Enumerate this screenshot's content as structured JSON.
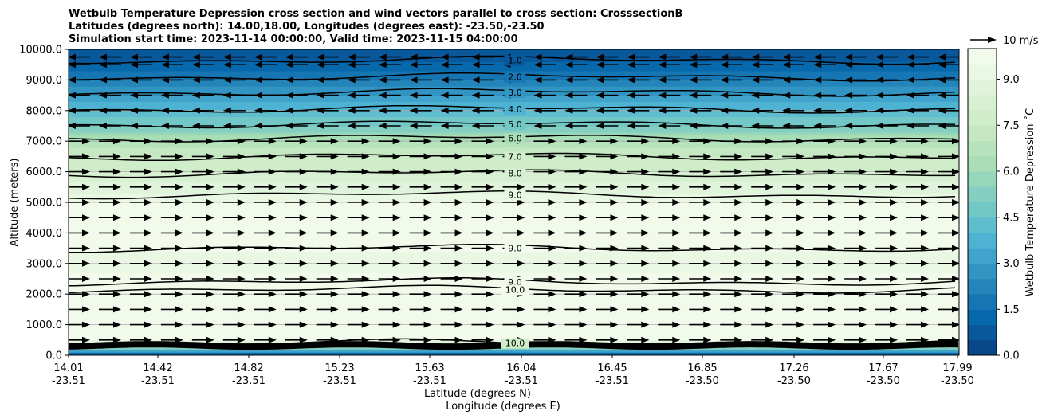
{
  "chart_data": {
    "type": "contour cross section with wind vectors",
    "title": [
      "Wetbulb Temperature Depression cross section and wind vectors parallel to cross section: CrosssectionB",
      "Latitudes (degrees north): 14.00,18.00, Longitudes (degrees east): -23.50,-23.50",
      "Simulation start time: 2023-11-14 00:00:00, Valid time: 2023-11-15 04:00:00"
    ],
    "ylabel": "Altitude (meters)",
    "xlabel_lat": "Latitude (degrees N)",
    "xlabel_lon": "Longitude (degrees E)",
    "ylim": [
      0,
      10000
    ],
    "y_ticks": [
      "0.0",
      "1000.0",
      "2000.0",
      "3000.0",
      "4000.0",
      "5000.0",
      "6000.0",
      "7000.0",
      "8000.0",
      "9000.0",
      "10000.0"
    ],
    "x_ticks": [
      {
        "lat": "14.01",
        "lon": "-23.51"
      },
      {
        "lat": "14.42",
        "lon": "-23.51"
      },
      {
        "lat": "14.82",
        "lon": "-23.51"
      },
      {
        "lat": "15.23",
        "lon": "-23.51"
      },
      {
        "lat": "15.63",
        "lon": "-23.51"
      },
      {
        "lat": "16.04",
        "lon": "-23.51"
      },
      {
        "lat": "16.45",
        "lon": "-23.51"
      },
      {
        "lat": "16.85",
        "lon": "-23.50"
      },
      {
        "lat": "17.26",
        "lon": "-23.50"
      },
      {
        "lat": "17.67",
        "lon": "-23.50"
      },
      {
        "lat": "17.99",
        "lon": "-23.50"
      }
    ],
    "grid": "horizontal",
    "colorbar": {
      "label": "Wetbulb Temperature Depression ˚C",
      "range": [
        0,
        10
      ],
      "ticks": [
        "0.0",
        "1.5",
        "3.0",
        "4.5",
        "6.0",
        "7.5",
        "9.0"
      ],
      "colormap": "GnBu_r"
    },
    "quiver_key": "10 m/s",
    "depression_profile": [
      {
        "altitude": 0,
        "value": 0.5
      },
      {
        "altitude": 500,
        "value": 9.8
      },
      {
        "altitude": 1000,
        "value": 10.0
      },
      {
        "altitude": 2000,
        "value": 10.0
      },
      {
        "altitude": 3000,
        "value": 9.3
      },
      {
        "altitude": 4000,
        "value": 9.8
      },
      {
        "altitude": 5000,
        "value": 9.5
      },
      {
        "altitude": 6000,
        "value": 8.0
      },
      {
        "altitude": 6500,
        "value": 7.5
      },
      {
        "altitude": 7000,
        "value": 6.5
      },
      {
        "altitude": 7500,
        "value": 5.0
      },
      {
        "altitude": 8000,
        "value": 4.0
      },
      {
        "altitude": 8500,
        "value": 3.0
      },
      {
        "altitude": 9000,
        "value": 2.0
      },
      {
        "altitude": 9500,
        "value": 1.2
      },
      {
        "altitude": 10000,
        "value": 0.5
      }
    ],
    "contour_lines": [
      {
        "label": "1.0",
        "altitude": 9650
      },
      {
        "label": "2.0",
        "altitude": 9100
      },
      {
        "label": "3.0",
        "altitude": 8600
      },
      {
        "label": "4.0",
        "altitude": 8050
      },
      {
        "label": "5.0",
        "altitude": 7550
      },
      {
        "label": "6.0",
        "altitude": 7100
      },
      {
        "label": "7.0",
        "altitude": 6500
      },
      {
        "label": "8.0",
        "altitude": 5950
      },
      {
        "label": "9.0",
        "altitude": 5250
      },
      {
        "label": "9.0",
        "altitude": 3500
      },
      {
        "label": "9.0",
        "altitude": 2400
      },
      {
        "label": "10.0",
        "altitude": 2150
      },
      {
        "label": "10.0",
        "altitude": 400
      }
    ],
    "wind_rows": [
      {
        "altitude": 9750,
        "direction": "west"
      },
      {
        "altitude": 9500,
        "direction": "west"
      },
      {
        "altitude": 9000,
        "direction": "west"
      },
      {
        "altitude": 8500,
        "direction": "west"
      },
      {
        "altitude": 8000,
        "direction": "west"
      },
      {
        "altitude": 7500,
        "direction": "west"
      },
      {
        "altitude": 7000,
        "direction": "east"
      },
      {
        "altitude": 6500,
        "direction": "east"
      },
      {
        "altitude": 6000,
        "direction": "east"
      },
      {
        "altitude": 5500,
        "direction": "east"
      },
      {
        "altitude": 5000,
        "direction": "east"
      },
      {
        "altitude": 4500,
        "direction": "east"
      },
      {
        "altitude": 4000,
        "direction": "east"
      },
      {
        "altitude": 3500,
        "direction": "east"
      },
      {
        "altitude": 3000,
        "direction": "east"
      },
      {
        "altitude": 2500,
        "direction": "east"
      },
      {
        "altitude": 2000,
        "direction": "east"
      },
      {
        "altitude": 1500,
        "direction": "east"
      },
      {
        "altitude": 1000,
        "direction": "east"
      },
      {
        "altitude": 500,
        "direction": "east"
      }
    ]
  }
}
